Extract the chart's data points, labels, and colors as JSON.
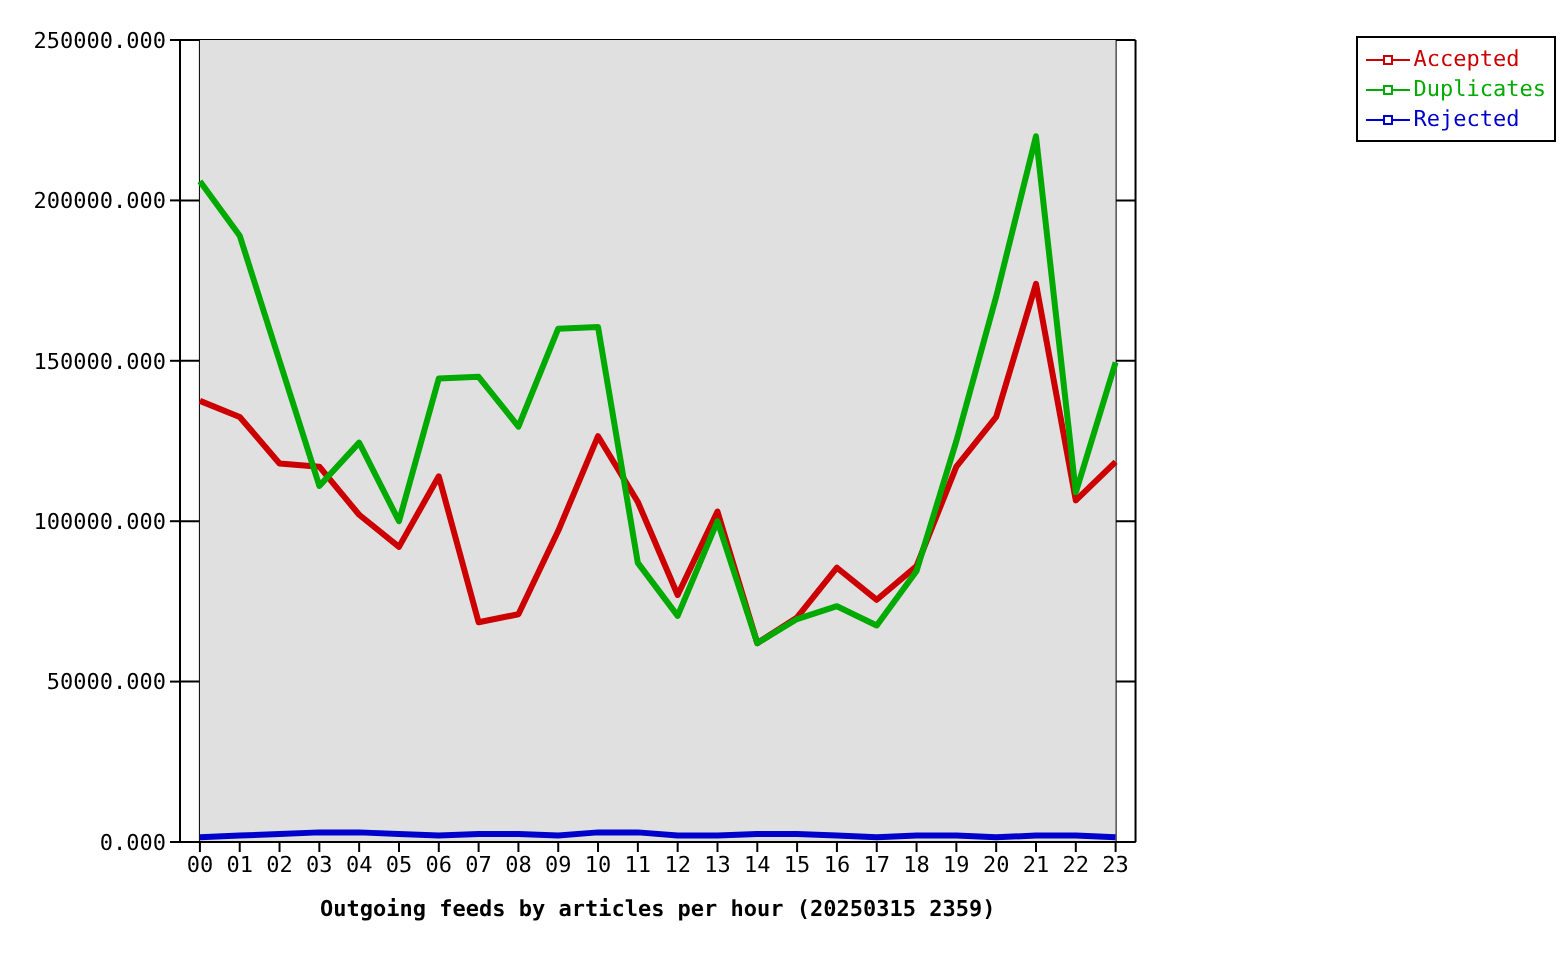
{
  "chart_data": {
    "type": "line",
    "xlabel": "Outgoing feeds by articles per hour (20250315 2359)",
    "categories": [
      "00",
      "01",
      "02",
      "03",
      "04",
      "05",
      "06",
      "07",
      "08",
      "09",
      "10",
      "11",
      "12",
      "13",
      "14",
      "15",
      "16",
      "17",
      "18",
      "19",
      "20",
      "21",
      "22",
      "23"
    ],
    "series": [
      {
        "name": "Accepted",
        "color": "#cc0000",
        "values": [
          137500,
          132500,
          118000,
          117000,
          102000,
          92000,
          114000,
          68500,
          71000,
          97000,
          126500,
          106000,
          77000,
          103000,
          62000,
          70000,
          85500,
          75500,
          86000,
          117000,
          132500,
          174000,
          106500,
          118500
        ]
      },
      {
        "name": "Duplicates",
        "color": "#00aa00",
        "values": [
          206000,
          189000,
          150000,
          111000,
          124500,
          100000,
          144500,
          145000,
          129500,
          160000,
          160500,
          87000,
          70500,
          100000,
          62000,
          69500,
          73500,
          67500,
          84500,
          125000,
          170000,
          220000,
          109000,
          149500
        ]
      },
      {
        "name": "Rejected",
        "color": "#0000cc",
        "values": [
          1500,
          2000,
          2500,
          3000,
          3000,
          2500,
          2000,
          2500,
          2500,
          2000,
          3000,
          3000,
          2000,
          2000,
          2500,
          2500,
          2000,
          1500,
          2000,
          2000,
          1500,
          2000,
          2000,
          1500
        ]
      }
    ],
    "ylim": [
      0,
      250000
    ],
    "yticks": [
      {
        "value": 0,
        "label": "0.000"
      },
      {
        "value": 50000,
        "label": "50000.000"
      },
      {
        "value": 100000,
        "label": "100000.000"
      },
      {
        "value": 150000,
        "label": "150000.000"
      },
      {
        "value": 200000,
        "label": "200000.000"
      },
      {
        "value": 250000,
        "label": "250000.000"
      }
    ],
    "grid": true,
    "legend": "top right",
    "marker": "none",
    "line_style": "solid"
  }
}
